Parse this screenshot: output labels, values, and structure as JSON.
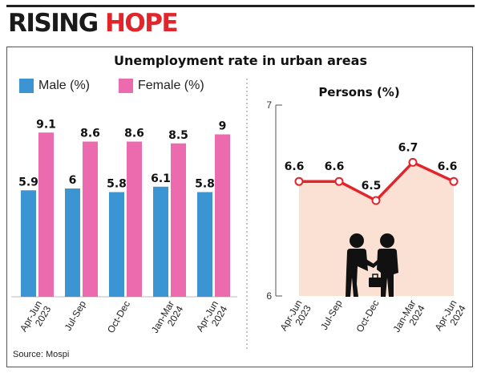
{
  "headline": {
    "part1": "RISING ",
    "part2": "HOPE"
  },
  "colors": {
    "male": "#3b95d3",
    "female": "#ec6bae",
    "line": "#e2252b",
    "area": "#fbe1d3",
    "headline_accent": "#e2252b"
  },
  "source": "Source: Mospi",
  "chart_data": [
    {
      "type": "bar",
      "title": "Unemployment rate in urban areas",
      "categories": [
        [
          "Apr-Jun",
          "2023"
        ],
        [
          "Jul-Sep",
          ""
        ],
        [
          "Oct-Dec",
          ""
        ],
        [
          "Jan-Mar",
          "2024"
        ],
        [
          "Apr-Jun",
          "2024"
        ]
      ],
      "series": [
        {
          "name": "Male (%)",
          "values": [
            5.9,
            6,
            5.8,
            6.1,
            5.8
          ],
          "labels": [
            "5.9",
            "6",
            "5.8",
            "6.1",
            "5.8"
          ]
        },
        {
          "name": "Female (%)",
          "values": [
            9.1,
            8.6,
            8.6,
            8.5,
            9
          ],
          "labels": [
            "9.1",
            "8.6",
            "8.6",
            "8.5",
            "9"
          ]
        }
      ],
      "ylim": [
        0,
        9.5
      ],
      "xlabel": "",
      "ylabel": "",
      "legend": "top-left"
    },
    {
      "type": "area",
      "title": "Persons (%)",
      "categories": [
        [
          "Apr-Jun",
          "2023"
        ],
        [
          "Jul-Sep",
          ""
        ],
        [
          "Oct-Dec",
          ""
        ],
        [
          "Jan-Mar",
          "2024"
        ],
        [
          "Apr-Jun",
          "2024"
        ]
      ],
      "values": [
        6.6,
        6.6,
        6.5,
        6.7,
        6.6
      ],
      "labels": [
        "6.6",
        "6.6",
        "6.5",
        "6.7",
        "6.6"
      ],
      "yticks": [
        "7",
        "6"
      ],
      "ylim": [
        6,
        7
      ],
      "xlabel": "",
      "ylabel": ""
    }
  ]
}
